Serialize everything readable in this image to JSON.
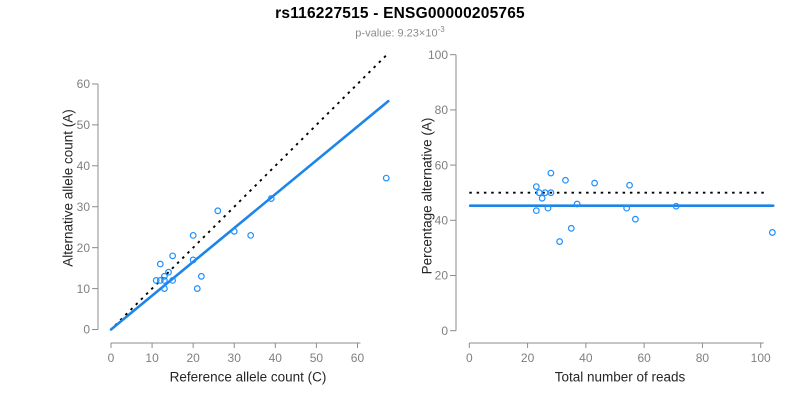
{
  "figure": {
    "title": "rs116227515 - ENSG00000205765",
    "subtitle": {
      "prefix": "p-value: ",
      "base": "9.23×10",
      "exponent": "-3"
    }
  },
  "colors": {
    "point_blue": "#1E90FF",
    "line_blue": "#1E85E8",
    "reference_black": "#000000",
    "axis_gray": "#8c8c8c",
    "tick_label_gray": "#808080",
    "axis_title_dark": "#262626",
    "subtitle_gray": "#8c8c8c",
    "background": "#ffffff"
  },
  "chart_data": [
    {
      "type": "scatter",
      "panel": "left",
      "xlabel": "Reference allele count (C)",
      "ylabel": "Alternative allele count (A)",
      "xlim": [
        0,
        67.5
      ],
      "ylim": [
        0,
        67.5
      ],
      "xticks": [
        0,
        10,
        20,
        30,
        40,
        50,
        60
      ],
      "yticks": [
        0,
        10,
        20,
        30,
        40,
        50,
        60
      ],
      "grid": false,
      "legend": "none",
      "points": [
        [
          11,
          12
        ],
        [
          12,
          12
        ],
        [
          13,
          12
        ],
        [
          13,
          13
        ],
        [
          14,
          14
        ],
        [
          12,
          16
        ],
        [
          15,
          12
        ],
        [
          13,
          10
        ],
        [
          15,
          18
        ],
        [
          20,
          17
        ],
        [
          20,
          23
        ],
        [
          21,
          10
        ],
        [
          22,
          13
        ],
        [
          26,
          29
        ],
        [
          30,
          24
        ],
        [
          34,
          23
        ],
        [
          39,
          32
        ],
        [
          67,
          37
        ]
      ],
      "reference_line": {
        "label": "identity y = x",
        "style": "dotted",
        "x1": 1,
        "y1": 1,
        "x2": 67,
        "y2": 67
      },
      "fit_line": {
        "label": "allelic ratio fit (slope 0.83)",
        "style": "solid",
        "x1": 0,
        "y1": 0,
        "x2": 67.5,
        "y2": 55.8
      }
    },
    {
      "type": "scatter",
      "panel": "right",
      "xlabel": "Total number of reads",
      "ylabel": "Percentage alternative (A)",
      "xlim": [
        0,
        104.5
      ],
      "ylim": [
        0,
        100
      ],
      "xticks": [
        0,
        20,
        40,
        60,
        80,
        100
      ],
      "yticks": [
        0,
        20,
        40,
        60,
        80,
        100
      ],
      "grid": false,
      "legend": "none",
      "points": [
        [
          23,
          52.2
        ],
        [
          24,
          50
        ],
        [
          25,
          48
        ],
        [
          26,
          50
        ],
        [
          28,
          50
        ],
        [
          28,
          57.1
        ],
        [
          27,
          44.4
        ],
        [
          23,
          43.5
        ],
        [
          33,
          54.5
        ],
        [
          37,
          45.9
        ],
        [
          43,
          53.5
        ],
        [
          31,
          32.3
        ],
        [
          35,
          37.1
        ],
        [
          55,
          52.7
        ],
        [
          54,
          44.4
        ],
        [
          57,
          40.4
        ],
        [
          71,
          45.1
        ],
        [
          104,
          35.6
        ]
      ],
      "reference_line": {
        "label": "50% reference",
        "style": "dotted",
        "x1": 0,
        "y1": 50,
        "x2": 102.5,
        "y2": 50
      },
      "fit_line": {
        "label": "mean percentage 45.3%",
        "style": "solid",
        "x1": 0.3,
        "y1": 45.3,
        "x2": 104.3,
        "y2": 45.3
      }
    }
  ]
}
